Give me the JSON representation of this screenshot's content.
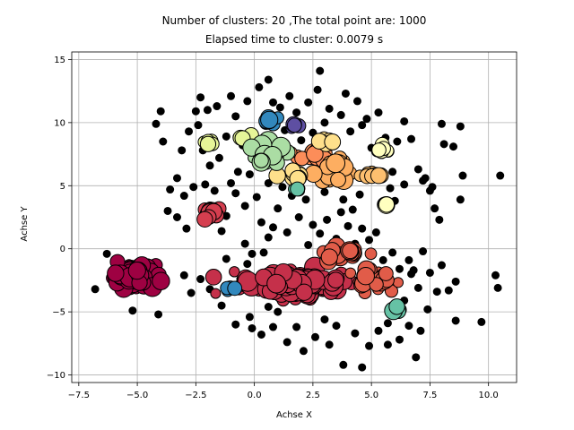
{
  "chart_data": {
    "type": "scatter",
    "title_lines": [
      "Number of clusters: 20 ,The total point are: 1000",
      "Elapsed time to cluster:  0.0079 s"
    ],
    "xlabel": "Achse X",
    "ylabel": "Achse Y",
    "xlim": [
      -7.8,
      11.2
    ],
    "ylim": [
      -10.6,
      15.6
    ],
    "xticks": [
      -7.5,
      -5.0,
      -2.5,
      0.0,
      2.5,
      5.0,
      7.5,
      10.0
    ],
    "xtick_labels": [
      "−7.5",
      "−5.0",
      "−2.5",
      "0.0",
      "2.5",
      "5.0",
      "7.5",
      "10.0"
    ],
    "yticks": [
      -10,
      -5,
      0,
      5,
      10,
      15
    ],
    "ytick_labels": [
      "−10",
      "−5",
      "0",
      "5",
      "10",
      "15"
    ],
    "grid": true,
    "marker_edge_color": "#000000",
    "noise": {
      "color": "#000000",
      "points": [
        [
          -6.8,
          -3.2
        ],
        [
          -6.3,
          -0.4
        ],
        [
          -5.2,
          -4.9
        ],
        [
          -4.1,
          -5.2
        ],
        [
          -4.2,
          -3.0
        ],
        [
          -4.0,
          10.9
        ],
        [
          -4.2,
          9.9
        ],
        [
          -3.9,
          8.5
        ],
        [
          -3.6,
          4.7
        ],
        [
          -3.7,
          3.0
        ],
        [
          -3.1,
          7.8
        ],
        [
          -3.3,
          5.6
        ],
        [
          -3.0,
          4.2
        ],
        [
          -2.8,
          9.3
        ],
        [
          -2.5,
          10.9
        ],
        [
          -2.3,
          12.0
        ],
        [
          -2.4,
          9.8
        ],
        [
          -2.0,
          11.0
        ],
        [
          -2.2,
          7.8
        ],
        [
          -1.9,
          6.6
        ],
        [
          -1.6,
          11.3
        ],
        [
          -1.5,
          7.2
        ],
        [
          -1.2,
          8.9
        ],
        [
          -1.0,
          12.1
        ],
        [
          -0.8,
          10.5
        ],
        [
          -0.7,
          6.1
        ],
        [
          -0.5,
          8.2
        ],
        [
          -0.3,
          11.7
        ],
        [
          -0.2,
          5.9
        ],
        [
          0.0,
          7.3
        ],
        [
          0.2,
          12.8
        ],
        [
          0.3,
          6.8
        ],
        [
          0.6,
          13.4
        ],
        [
          0.8,
          11.6
        ],
        [
          0.9,
          7.6
        ],
        [
          1.1,
          11.2
        ],
        [
          1.3,
          9.4
        ],
        [
          1.5,
          12.1
        ],
        [
          1.6,
          4.2
        ],
        [
          1.8,
          10.8
        ],
        [
          2.0,
          8.6
        ],
        [
          2.3,
          11.6
        ],
        [
          2.5,
          9.2
        ],
        [
          2.7,
          12.6
        ],
        [
          2.8,
          14.1
        ],
        [
          3.0,
          10.0
        ],
        [
          3.2,
          11.1
        ],
        [
          3.4,
          8.5
        ],
        [
          3.7,
          10.6
        ],
        [
          3.9,
          12.3
        ],
        [
          4.1,
          9.3
        ],
        [
          4.4,
          11.7
        ],
        [
          4.6,
          9.8
        ],
        [
          4.8,
          10.3
        ],
        [
          5.0,
          8.0
        ],
        [
          5.3,
          10.8
        ],
        [
          5.6,
          8.8
        ],
        [
          5.9,
          6.1
        ],
        [
          6.1,
          8.5
        ],
        [
          6.4,
          10.1
        ],
        [
          6.7,
          8.7
        ],
        [
          7.0,
          6.3
        ],
        [
          7.2,
          5.4
        ],
        [
          7.5,
          4.6
        ],
        [
          7.7,
          3.2
        ],
        [
          8.0,
          9.9
        ],
        [
          8.1,
          8.3
        ],
        [
          8.5,
          8.1
        ],
        [
          8.8,
          9.7
        ],
        [
          8.9,
          5.8
        ],
        [
          8.8,
          3.9
        ],
        [
          7.9,
          2.3
        ],
        [
          7.6,
          4.9
        ],
        [
          7.3,
          5.6
        ],
        [
          10.5,
          5.8
        ],
        [
          10.3,
          -2.1
        ],
        [
          10.4,
          -3.1
        ],
        [
          9.7,
          -5.8
        ],
        [
          8.6,
          -5.7
        ],
        [
          8.6,
          -2.6
        ],
        [
          8.0,
          -1.3
        ],
        [
          7.8,
          -3.4
        ],
        [
          7.4,
          -4.8
        ],
        [
          7.1,
          -6.5
        ],
        [
          6.9,
          -8.6
        ],
        [
          6.6,
          -6.1
        ],
        [
          6.2,
          -7.2
        ],
        [
          5.7,
          -5.9
        ],
        [
          5.3,
          -6.5
        ],
        [
          4.9,
          -7.7
        ],
        [
          4.6,
          -9.4
        ],
        [
          4.3,
          -6.7
        ],
        [
          3.8,
          -9.2
        ],
        [
          3.5,
          -6.1
        ],
        [
          3.2,
          -7.6
        ],
        [
          3.0,
          -5.6
        ],
        [
          2.6,
          -7.0
        ],
        [
          2.1,
          -8.1
        ],
        [
          1.8,
          -6.2
        ],
        [
          1.4,
          -7.4
        ],
        [
          0.8,
          -6.2
        ],
        [
          0.3,
          -6.8
        ],
        [
          -0.2,
          -5.4
        ],
        [
          -0.1,
          -6.3
        ],
        [
          -0.8,
          -6.0
        ],
        [
          -1.4,
          -4.5
        ],
        [
          -1.9,
          -3.2
        ],
        [
          -2.3,
          -2.4
        ],
        [
          -2.7,
          -3.5
        ],
        [
          -3.0,
          -2.1
        ],
        [
          -1.7,
          -2.0
        ],
        [
          -1.2,
          -0.8
        ],
        [
          -0.4,
          0.4
        ],
        [
          -0.1,
          -0.4
        ],
        [
          0.6,
          0.9
        ],
        [
          0.8,
          1.7
        ],
        [
          0.3,
          2.1
        ],
        [
          1.0,
          3.2
        ],
        [
          1.4,
          1.3
        ],
        [
          1.9,
          2.5
        ],
        [
          2.3,
          0.3
        ],
        [
          2.5,
          1.9
        ],
        [
          2.8,
          1.2
        ],
        [
          3.1,
          2.3
        ],
        [
          3.5,
          0.8
        ],
        [
          3.7,
          2.9
        ],
        [
          4.0,
          1.8
        ],
        [
          4.3,
          0.4
        ],
        [
          4.6,
          1.6
        ],
        [
          4.9,
          0.7
        ],
        [
          5.2,
          1.3
        ],
        [
          5.5,
          -0.9
        ],
        [
          5.9,
          -0.3
        ],
        [
          6.2,
          -1.6
        ],
        [
          6.6,
          -0.9
        ],
        [
          6.8,
          -1.7
        ],
        [
          7.2,
          -0.2
        ],
        [
          7.5,
          -1.9
        ],
        [
          6.0,
          3.8
        ],
        [
          6.4,
          5.1
        ],
        [
          5.8,
          4.8
        ],
        [
          4.5,
          4.3
        ],
        [
          4.2,
          3.1
        ],
        [
          3.8,
          3.9
        ],
        [
          3.0,
          4.5
        ],
        [
          2.2,
          3.9
        ],
        [
          1.2,
          4.9
        ],
        [
          0.6,
          5.2
        ],
        [
          0.1,
          4.1
        ],
        [
          -0.4,
          3.4
        ],
        [
          -0.8,
          4.4
        ],
        [
          -1.2,
          2.6
        ],
        [
          -1.4,
          1.4
        ],
        [
          -1.0,
          5.2
        ],
        [
          -1.7,
          4.6
        ],
        [
          -2.1,
          5.1
        ],
        [
          -2.6,
          4.9
        ],
        [
          -3.3,
          2.5
        ],
        [
          -2.9,
          1.6
        ],
        [
          -0.3,
          -1.2
        ],
        [
          0.4,
          -0.3
        ],
        [
          -0.6,
          -2.4
        ],
        [
          0.0,
          -3.4
        ],
        [
          0.6,
          -4.6
        ],
        [
          1.0,
          -5.0
        ],
        [
          5.7,
          -7.6
        ],
        [
          6.4,
          -4.1
        ],
        [
          7.0,
          -3.1
        ],
        [
          8.3,
          -3.3
        ],
        [
          6.7,
          -2.0
        ]
      ]
    },
    "clusters": [
      {
        "color": "#9e0142",
        "center": [
          -5.2,
          -2.1
        ],
        "spread": [
          0.7,
          0.7
        ],
        "n": 130,
        "size": [
          5,
          11
        ]
      },
      {
        "color": "#c5304a",
        "center": [
          1.6,
          -2.8
        ],
        "spread": [
          1.6,
          0.8
        ],
        "n": 150,
        "size": [
          5,
          12
        ]
      },
      {
        "color": "#d53e4f",
        "center": [
          -1.9,
          2.8
        ],
        "spread": [
          0.4,
          0.5
        ],
        "n": 14,
        "size": [
          6,
          10
        ]
      },
      {
        "color": "#e15c49",
        "center": [
          3.6,
          -0.3
        ],
        "spread": [
          0.7,
          0.4
        ],
        "n": 30,
        "size": [
          5,
          10
        ]
      },
      {
        "color": "#e15c49",
        "center": [
          5.0,
          -2.4
        ],
        "spread": [
          0.8,
          0.6
        ],
        "n": 35,
        "size": [
          5,
          10
        ]
      },
      {
        "color": "#fc8d59",
        "center": [
          2.6,
          7.4
        ],
        "spread": [
          0.6,
          0.4
        ],
        "n": 14,
        "size": [
          6,
          10
        ]
      },
      {
        "color": "#fdae61",
        "center": [
          3.4,
          6.2
        ],
        "spread": [
          0.7,
          0.7
        ],
        "n": 28,
        "size": [
          5,
          11
        ]
      },
      {
        "color": "#fdbf6f",
        "center": [
          5.0,
          5.9
        ],
        "spread": [
          0.4,
          0.3
        ],
        "n": 8,
        "size": [
          6,
          9
        ]
      },
      {
        "color": "#fee08b",
        "center": [
          1.7,
          6.0
        ],
        "spread": [
          0.3,
          0.4
        ],
        "n": 12,
        "size": [
          6,
          10
        ]
      },
      {
        "color": "#fee08b",
        "center": [
          3.2,
          8.6
        ],
        "spread": [
          0.4,
          0.2
        ],
        "n": 8,
        "size": [
          6,
          9
        ]
      },
      {
        "color": "#ffffbf",
        "center": [
          5.4,
          7.7
        ],
        "spread": [
          0.4,
          0.3
        ],
        "n": 10,
        "size": [
          5,
          9
        ]
      },
      {
        "color": "#ffffbf",
        "center": [
          5.6,
          3.5
        ],
        "spread": [
          0.2,
          0.2
        ],
        "n": 4,
        "size": [
          7,
          10
        ]
      },
      {
        "color": "#e6f598",
        "center": [
          -2.0,
          8.5
        ],
        "spread": [
          0.2,
          0.3
        ],
        "n": 6,
        "size": [
          6,
          9
        ]
      },
      {
        "color": "#e6f598",
        "center": [
          -0.6,
          8.8
        ],
        "spread": [
          0.3,
          0.3
        ],
        "n": 6,
        "size": [
          6,
          9
        ]
      },
      {
        "color": "#abdda4",
        "center": [
          0.4,
          7.7
        ],
        "spread": [
          0.8,
          0.7
        ],
        "n": 28,
        "size": [
          5,
          11
        ]
      },
      {
        "color": "#66c2a5",
        "center": [
          1.8,
          4.6
        ],
        "spread": [
          0.2,
          0.2
        ],
        "n": 5,
        "size": [
          5,
          8
        ]
      },
      {
        "color": "#66c2a5",
        "center": [
          6.0,
          -4.9
        ],
        "spread": [
          0.3,
          0.3
        ],
        "n": 6,
        "size": [
          5,
          10
        ]
      },
      {
        "color": "#3288bd",
        "center": [
          0.7,
          10.1
        ],
        "spread": [
          0.3,
          0.3
        ],
        "n": 8,
        "size": [
          6,
          10
        ]
      },
      {
        "color": "#3288bd",
        "center": [
          -1.0,
          -3.2
        ],
        "spread": [
          0.2,
          0.2
        ],
        "n": 4,
        "size": [
          6,
          9
        ]
      },
      {
        "color": "#5e4fa2",
        "center": [
          1.8,
          9.7
        ],
        "spread": [
          0.2,
          0.2
        ],
        "n": 4,
        "size": [
          6,
          9
        ]
      }
    ]
  }
}
